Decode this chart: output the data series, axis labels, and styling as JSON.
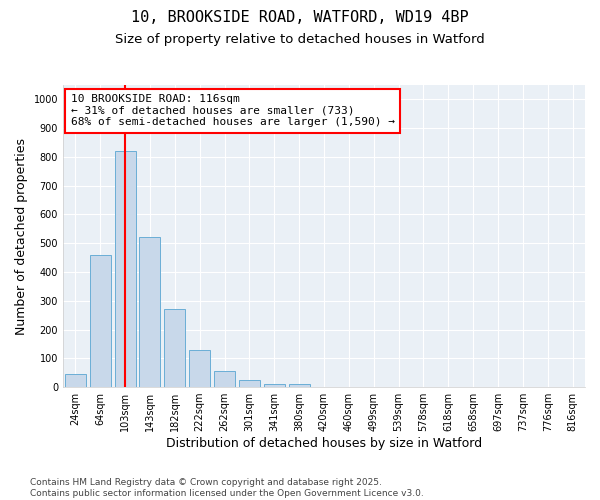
{
  "title": "10, BROOKSIDE ROAD, WATFORD, WD19 4BP",
  "subtitle": "Size of property relative to detached houses in Watford",
  "xlabel": "Distribution of detached houses by size in Watford",
  "ylabel": "Number of detached properties",
  "categories": [
    "24sqm",
    "64sqm",
    "103sqm",
    "143sqm",
    "182sqm",
    "222sqm",
    "262sqm",
    "301sqm",
    "341sqm",
    "380sqm",
    "420sqm",
    "460sqm",
    "499sqm",
    "539sqm",
    "578sqm",
    "618sqm",
    "658sqm",
    "697sqm",
    "737sqm",
    "776sqm",
    "816sqm"
  ],
  "values": [
    47,
    460,
    820,
    520,
    270,
    130,
    57,
    25,
    12,
    10,
    0,
    0,
    0,
    0,
    0,
    0,
    0,
    0,
    0,
    0,
    0
  ],
  "bar_color": "#c8d8ea",
  "bar_edge_color": "#6aaed6",
  "vline_x_index": 2,
  "vline_color": "red",
  "annotation_text": "10 BROOKSIDE ROAD: 116sqm\n← 31% of detached houses are smaller (733)\n68% of semi-detached houses are larger (1,590) →",
  "annotation_box_color": "white",
  "annotation_box_edge_color": "red",
  "ylim": [
    0,
    1050
  ],
  "yticks": [
    0,
    100,
    200,
    300,
    400,
    500,
    600,
    700,
    800,
    900,
    1000
  ],
  "footer": "Contains HM Land Registry data © Crown copyright and database right 2025.\nContains public sector information licensed under the Open Government Licence v3.0.",
  "background_color": "#ffffff",
  "plot_background_color": "#eaf0f6",
  "grid_color": "#ffffff",
  "title_fontsize": 11,
  "subtitle_fontsize": 9.5,
  "axis_label_fontsize": 9,
  "tick_fontsize": 7,
  "annotation_fontsize": 8,
  "footer_fontsize": 6.5
}
